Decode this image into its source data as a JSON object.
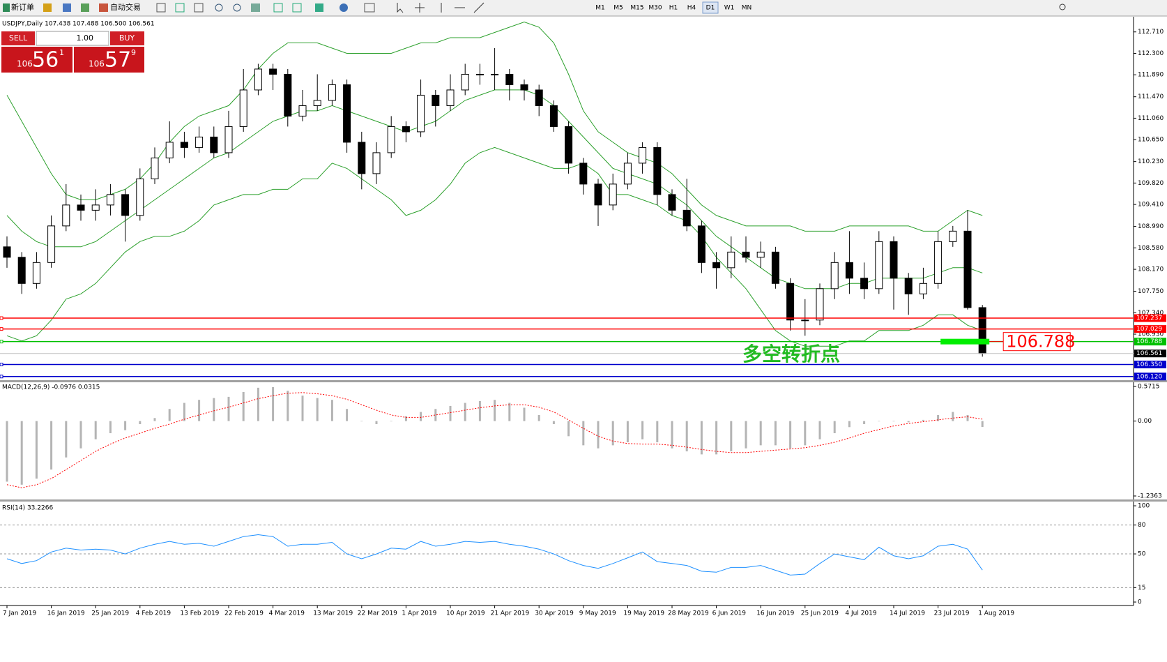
{
  "toolbar": {
    "new_order": "新订单",
    "auto_trading": "自动交易",
    "timeframes": [
      "M1",
      "M5",
      "M15",
      "M30",
      "H1",
      "H4",
      "D1",
      "W1",
      "MN"
    ]
  },
  "trade_panel": {
    "sell": "SELL",
    "buy": "BUY",
    "lot": "1.00",
    "sell_big": "106",
    "sell_main": "56",
    "sell_small": "1",
    "buy_big": "106",
    "buy_main": "57",
    "buy_small": "9"
  },
  "chart_data": [
    {
      "type": "candlestick",
      "title": "USDJPY,Daily  107.438 107.488 106.500 106.561",
      "categories": [
        "7 Jan 2019",
        null,
        null,
        "16 Jan 2019",
        null,
        null,
        "25 Jan 2019",
        null,
        null,
        "4 Feb 2019",
        null,
        null,
        "13 Feb 2019",
        null,
        null,
        "22 Feb 2019",
        null,
        null,
        "4 Mar 2019",
        null,
        null,
        "13 Mar 2019",
        null,
        null,
        "22 Mar 2019",
        null,
        null,
        "1 Apr 2019",
        null,
        null,
        "10 Apr 2019",
        null,
        null,
        "21 Apr 2019",
        null,
        null,
        "30 Apr 2019",
        null,
        null,
        "9 May 2019",
        null,
        null,
        "19 May 2019",
        null,
        null,
        "28 May 2019",
        null,
        null,
        "6 Jun 2019",
        null,
        null,
        "16 Jun 2019",
        null,
        null,
        "25 Jun 2019",
        null,
        null,
        "4 Jul 2019",
        null,
        null,
        "14 Jul 2019",
        null,
        null,
        "23 Jul 2019",
        null,
        null,
        "1 Aug 2019"
      ],
      "open": [
        108.6,
        108.4,
        107.9,
        108.3,
        109.0,
        109.4,
        109.3,
        109.4,
        109.6,
        109.2,
        109.9,
        110.3,
        110.6,
        110.5,
        110.7,
        110.4,
        110.9,
        111.6,
        112.0,
        111.9,
        111.1,
        111.3,
        111.4,
        111.7,
        110.6,
        110.0,
        110.4,
        110.9,
        110.8,
        111.5,
        111.3,
        111.6,
        111.9,
        111.9,
        111.9,
        111.7,
        111.6,
        111.3,
        110.9,
        110.2,
        109.8,
        109.4,
        109.8,
        110.2,
        110.5,
        109.6,
        109.3,
        109.0,
        108.3,
        108.2,
        108.5,
        108.4,
        108.5,
        107.9,
        107.2,
        107.2,
        107.8,
        108.3,
        108.0,
        107.8,
        108.7,
        108.0,
        107.7,
        107.9,
        108.7,
        108.9,
        107.438
      ],
      "high": [
        108.8,
        108.5,
        108.5,
        109.2,
        109.8,
        109.6,
        109.7,
        109.8,
        109.7,
        110.1,
        110.5,
        111.0,
        110.8,
        110.9,
        110.9,
        111.2,
        112.0,
        112.1,
        112.1,
        112.0,
        111.6,
        111.9,
        111.8,
        111.8,
        110.8,
        110.6,
        111.1,
        111.0,
        111.8,
        111.6,
        111.9,
        112.1,
        112.1,
        112.4,
        112.0,
        111.8,
        111.7,
        111.4,
        111.0,
        110.3,
        109.9,
        110.0,
        110.4,
        110.6,
        110.6,
        109.7,
        109.9,
        109.1,
        108.5,
        108.8,
        108.8,
        108.7,
        108.6,
        108.0,
        107.6,
        107.9,
        108.5,
        108.9,
        108.3,
        108.9,
        108.8,
        108.1,
        108.2,
        108.9,
        109.0,
        109.3,
        107.488
      ],
      "low": [
        108.2,
        107.7,
        107.8,
        108.2,
        108.9,
        109.1,
        109.1,
        109.2,
        108.7,
        109.1,
        109.8,
        110.2,
        110.3,
        110.4,
        110.3,
        110.3,
        110.8,
        111.5,
        111.6,
        110.9,
        111.0,
        111.2,
        111.3,
        110.4,
        109.7,
        109.8,
        110.3,
        110.6,
        110.7,
        110.9,
        111.2,
        111.5,
        111.7,
        111.6,
        111.4,
        111.4,
        111.1,
        110.8,
        110.0,
        109.6,
        109.0,
        109.3,
        109.7,
        110.0,
        109.4,
        109.2,
        108.9,
        108.1,
        107.8,
        108.0,
        108.3,
        108.2,
        107.8,
        107.0,
        106.9,
        107.1,
        107.6,
        107.7,
        107.6,
        107.7,
        107.4,
        107.3,
        107.6,
        107.8,
        108.6,
        107.4,
        106.5
      ],
      "close": [
        108.4,
        107.9,
        108.3,
        109.0,
        109.4,
        109.3,
        109.4,
        109.6,
        109.2,
        109.9,
        110.3,
        110.6,
        110.5,
        110.7,
        110.4,
        110.9,
        111.6,
        112.0,
        111.9,
        111.1,
        111.3,
        111.4,
        111.7,
        110.6,
        110.0,
        110.4,
        110.9,
        110.8,
        111.5,
        111.3,
        111.6,
        111.9,
        111.9,
        111.9,
        111.7,
        111.6,
        111.3,
        110.9,
        110.2,
        109.8,
        109.4,
        109.8,
        110.2,
        110.5,
        109.6,
        109.3,
        109.0,
        108.3,
        108.2,
        108.5,
        108.4,
        108.5,
        107.9,
        107.2,
        107.2,
        107.8,
        108.3,
        108.0,
        107.8,
        108.7,
        108.0,
        107.7,
        107.9,
        108.7,
        108.9,
        107.438,
        106.561
      ],
      "bands": {
        "color": "#2ca02c",
        "upper": [
          111.5,
          111.0,
          110.5,
          110.0,
          109.6,
          109.5,
          109.5,
          109.6,
          109.7,
          109.9,
          110.2,
          110.6,
          110.9,
          111.1,
          111.2,
          111.3,
          111.6,
          112.0,
          112.3,
          112.5,
          112.5,
          112.5,
          112.4,
          112.3,
          112.3,
          112.3,
          112.3,
          112.4,
          112.5,
          112.5,
          112.6,
          112.6,
          112.6,
          112.7,
          112.8,
          112.9,
          112.8,
          112.5,
          111.9,
          111.2,
          110.8,
          110.6,
          110.4,
          110.3,
          110.2,
          110.0,
          109.7,
          109.4,
          109.2,
          109.1,
          109.0,
          109.0,
          109.0,
          109.0,
          108.9,
          108.9,
          108.9,
          109.0,
          109.0,
          109.0,
          109.0,
          109.0,
          108.9,
          108.9,
          109.1,
          109.3,
          109.2
        ],
        "middle": [
          109.2,
          108.9,
          108.7,
          108.6,
          108.6,
          108.6,
          108.7,
          108.9,
          109.1,
          109.3,
          109.5,
          109.7,
          109.9,
          110.1,
          110.3,
          110.4,
          110.6,
          110.8,
          111.0,
          111.1,
          111.2,
          111.2,
          111.3,
          111.2,
          111.1,
          111.0,
          110.9,
          110.8,
          110.9,
          111.0,
          111.2,
          111.4,
          111.5,
          111.6,
          111.6,
          111.6,
          111.5,
          111.3,
          111.0,
          110.7,
          110.4,
          110.1,
          110.0,
          109.9,
          109.8,
          109.6,
          109.4,
          109.1,
          108.8,
          108.6,
          108.4,
          108.2,
          108.0,
          107.9,
          107.8,
          107.8,
          107.8,
          107.9,
          107.9,
          108.0,
          108.0,
          108.0,
          108.0,
          108.1,
          108.2,
          108.2,
          108.1
        ],
        "lower": [
          106.9,
          106.8,
          106.9,
          107.2,
          107.6,
          107.7,
          107.9,
          108.2,
          108.5,
          108.7,
          108.8,
          108.8,
          108.9,
          109.1,
          109.4,
          109.5,
          109.6,
          109.6,
          109.7,
          109.7,
          109.9,
          109.9,
          110.2,
          110.1,
          109.9,
          109.7,
          109.5,
          109.2,
          109.3,
          109.5,
          109.8,
          110.2,
          110.4,
          110.5,
          110.4,
          110.3,
          110.2,
          110.1,
          110.1,
          110.2,
          110.0,
          109.6,
          109.6,
          109.5,
          109.4,
          109.2,
          109.1,
          108.8,
          108.4,
          108.1,
          107.8,
          107.4,
          107.0,
          106.8,
          106.7,
          106.7,
          106.7,
          106.8,
          106.8,
          107.0,
          107.0,
          107.0,
          107.1,
          107.3,
          107.3,
          107.1,
          107.0
        ]
      },
      "ylim": [
        106.05,
        113.0
      ],
      "yticks": [
        {
          "value": 112.71,
          "label": "112.710"
        },
        {
          "value": 112.3,
          "label": "112.300"
        },
        {
          "value": 111.89,
          "label": "111.890"
        },
        {
          "value": 111.47,
          "label": "111.470"
        },
        {
          "value": 111.06,
          "label": "111.060"
        },
        {
          "value": 110.65,
          "label": "110.650"
        },
        {
          "value": 110.23,
          "label": "110.230"
        },
        {
          "value": 109.82,
          "label": "109.820"
        },
        {
          "value": 109.41,
          "label": "109.410"
        },
        {
          "value": 108.99,
          "label": "108.990"
        },
        {
          "value": 108.58,
          "label": "108.580"
        },
        {
          "value": 108.17,
          "label": "108.170"
        },
        {
          "value": 107.75,
          "label": "107.750"
        },
        {
          "value": 107.34,
          "label": "107.340"
        },
        {
          "value": 106.93,
          "label": "106.930"
        }
      ],
      "levels": [
        {
          "value": 107.237,
          "label": "107.237",
          "color": "#ff0000"
        },
        {
          "value": 107.029,
          "label": "107.029",
          "color": "#ff0000"
        },
        {
          "value": 106.788,
          "label": "106.788",
          "color": "#00c000"
        },
        {
          "value": 106.35,
          "label": "106.350",
          "color": "#0000cc"
        },
        {
          "value": 106.12,
          "label": "106.120",
          "color": "#0000cc"
        }
      ],
      "current_price": {
        "value": 106.561,
        "label": "106.561"
      },
      "annotation": "多空转折点",
      "marker": {
        "value": 106.788,
        "label": "106.788",
        "color": "#ff0000",
        "bar_color": "#00ee00"
      }
    },
    {
      "type": "macd",
      "title": "MACD(12,26,9) -0.0976 0.0315",
      "series": [
        {
          "color": "#b4b4b4",
          "values": [
            -1.0,
            -1.05,
            -0.95,
            -0.8,
            -0.6,
            -0.45,
            -0.3,
            -0.2,
            -0.15,
            -0.05,
            0.05,
            0.2,
            0.3,
            0.35,
            0.38,
            0.4,
            0.48,
            0.55,
            0.56,
            0.5,
            0.42,
            0.38,
            0.35,
            0.2,
            0.0,
            -0.05,
            0.0,
            0.08,
            0.15,
            0.2,
            0.25,
            0.3,
            0.33,
            0.35,
            0.3,
            0.22,
            0.1,
            -0.05,
            -0.25,
            -0.4,
            -0.45,
            -0.4,
            -0.35,
            -0.3,
            -0.35,
            -0.45,
            -0.5,
            -0.55,
            -0.55,
            -0.5,
            -0.45,
            -0.4,
            -0.4,
            -0.45,
            -0.4,
            -0.3,
            -0.2,
            -0.1,
            -0.05,
            0.0,
            0.0,
            -0.02,
            0.02,
            0.1,
            0.15,
            0.1,
            -0.0976
          ]
        },
        {
          "color": "#ff0000",
          "values": [
            -1.05,
            -1.1,
            -1.05,
            -0.95,
            -0.8,
            -0.65,
            -0.5,
            -0.38,
            -0.28,
            -0.2,
            -0.12,
            -0.05,
            0.03,
            0.1,
            0.17,
            0.23,
            0.3,
            0.37,
            0.42,
            0.46,
            0.47,
            0.45,
            0.42,
            0.36,
            0.27,
            0.18,
            0.1,
            0.06,
            0.06,
            0.1,
            0.14,
            0.18,
            0.22,
            0.25,
            0.27,
            0.27,
            0.23,
            0.15,
            0.02,
            -0.12,
            -0.25,
            -0.33,
            -0.37,
            -0.38,
            -0.38,
            -0.4,
            -0.43,
            -0.47,
            -0.5,
            -0.52,
            -0.52,
            -0.5,
            -0.48,
            -0.46,
            -0.44,
            -0.4,
            -0.35,
            -0.28,
            -0.2,
            -0.14,
            -0.08,
            -0.04,
            -0.01,
            0.02,
            0.05,
            0.07,
            0.0315
          ]
        }
      ],
      "ylim": [
        -1.294,
        0.629
      ],
      "yticks": [
        {
          "value": 0.5715,
          "label": "0.5715"
        },
        {
          "value": 0,
          "label": "0.00"
        },
        {
          "value": -1.2363,
          "label": "-1.2363"
        }
      ]
    },
    {
      "type": "line",
      "title": "RSI(14) 33.2266",
      "color": "#1e90ff",
      "values": [
        45,
        40,
        43,
        52,
        56,
        54,
        55,
        54,
        50,
        56,
        60,
        63,
        60,
        61,
        58,
        63,
        68,
        70,
        68,
        58,
        60,
        60,
        62,
        50,
        45,
        50,
        56,
        55,
        63,
        58,
        60,
        63,
        62,
        63,
        60,
        58,
        55,
        50,
        43,
        38,
        35,
        40,
        46,
        52,
        42,
        40,
        38,
        32,
        31,
        36,
        36,
        38,
        33,
        28,
        29,
        40,
        50,
        47,
        44,
        57,
        48,
        45,
        48,
        58,
        60,
        55,
        33.2266
      ],
      "ylim": [
        -3.6,
        104.4
      ],
      "yticks": [
        100,
        80,
        50,
        15,
        0
      ],
      "grid": true
    }
  ]
}
